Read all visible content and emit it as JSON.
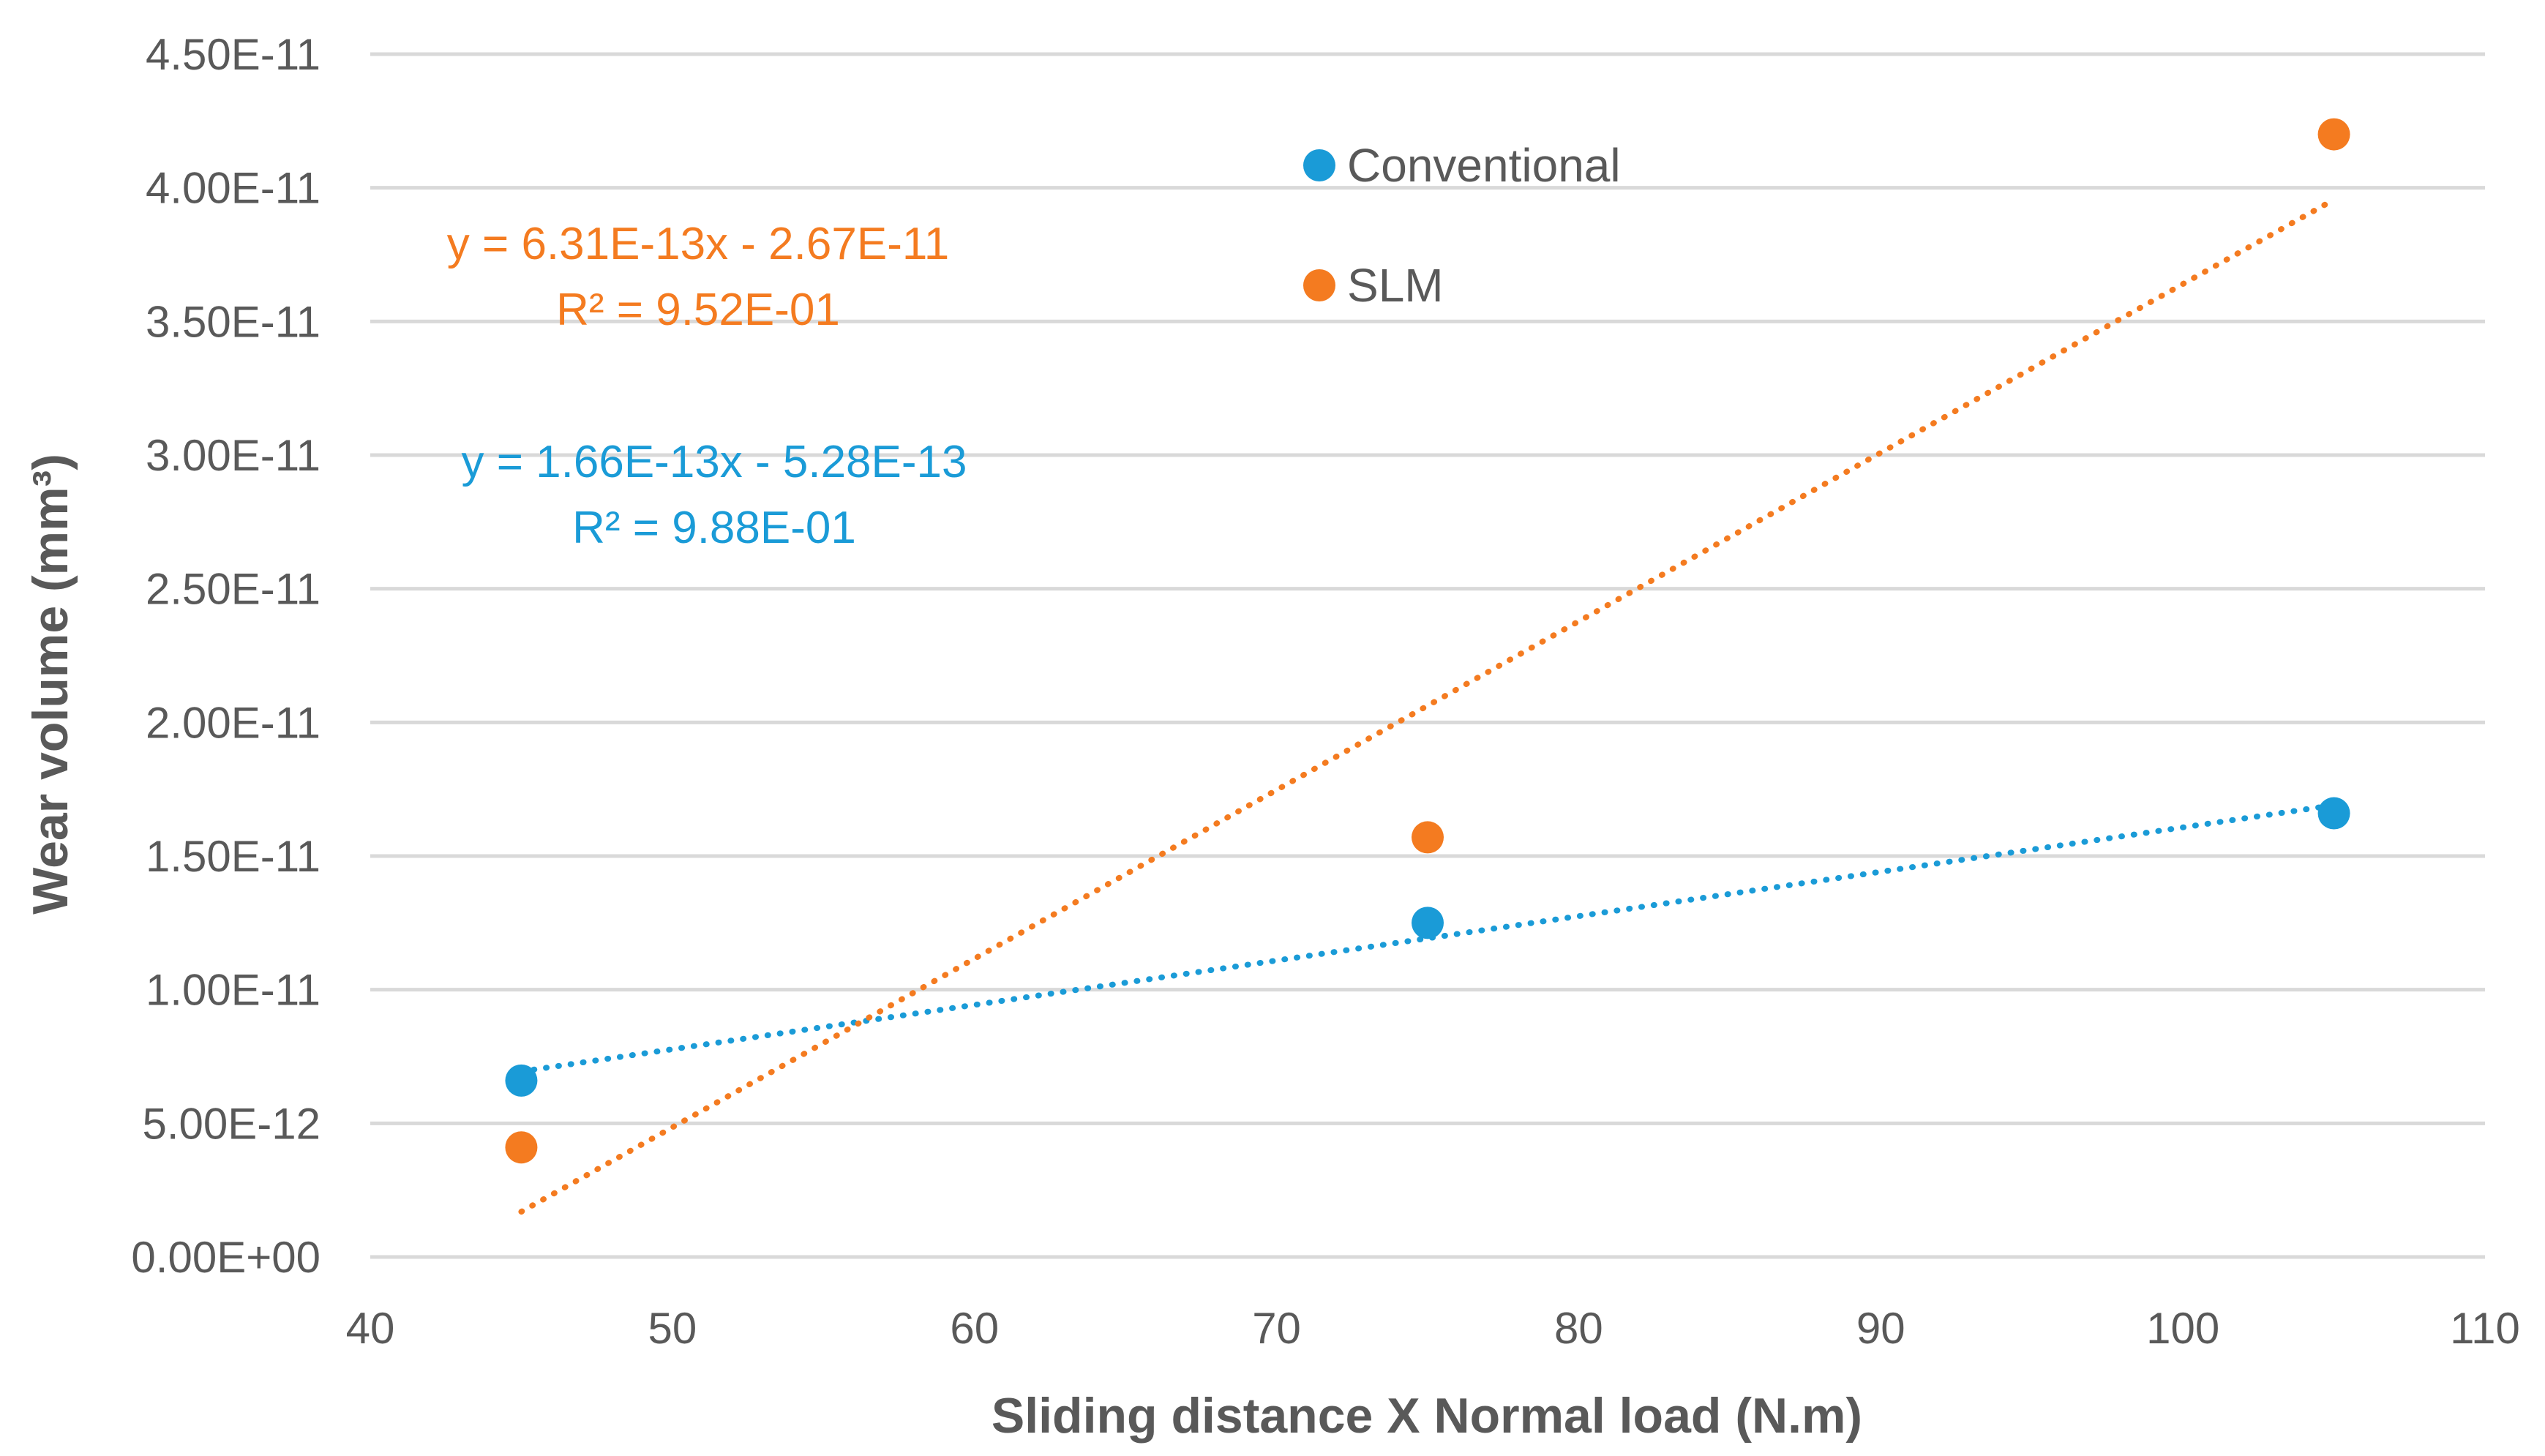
{
  "chart_data": {
    "type": "scatter",
    "xlabel": "Sliding distance X Normal load  (N.m)",
    "ylabel": "Wear volume (mm³)",
    "xlim": [
      40,
      110
    ],
    "ylim": [
      0,
      4.5e-11
    ],
    "x_ticks": [
      40,
      50,
      60,
      70,
      80,
      90,
      100,
      110
    ],
    "x_tick_labels": [
      "40",
      "50",
      "60",
      "70",
      "80",
      "90",
      "100",
      "110"
    ],
    "y_ticks": [
      0,
      5e-12,
      1e-11,
      1.5e-11,
      2e-11,
      2.5e-11,
      3e-11,
      3.5e-11,
      4e-11,
      4.5e-11
    ],
    "y_tick_labels": [
      "0.00E+00",
      "5.00E-12",
      "1.00E-11",
      "1.50E-11",
      "2.00E-11",
      "2.50E-11",
      "3.00E-11",
      "3.50E-11",
      "4.00E-11",
      "4.50E-11"
    ],
    "grid": "horizontal",
    "legend_position": "top-center",
    "series": [
      {
        "name": "Conventional",
        "color": "#1a9bd7",
        "x": [
          45,
          75,
          105
        ],
        "y": [
          6.6e-12,
          1.25e-11,
          1.66e-11
        ],
        "trendline": {
          "slope": 1.66e-13,
          "intercept": -5.28e-13,
          "equation": "y = 1.66E-13x - 5.28E-13",
          "r2": "R² = 9.88E-01"
        }
      },
      {
        "name": "SLM",
        "color": "#f47b20",
        "x": [
          45,
          75,
          105
        ],
        "y": [
          4.1e-12,
          1.57e-11,
          4.2e-11
        ],
        "trendline": {
          "slope": 6.31e-13,
          "intercept": -2.67e-11,
          "equation": "y = 6.31E-13x - 2.67E-11",
          "r2": "R² = 9.52E-01"
        }
      }
    ]
  }
}
